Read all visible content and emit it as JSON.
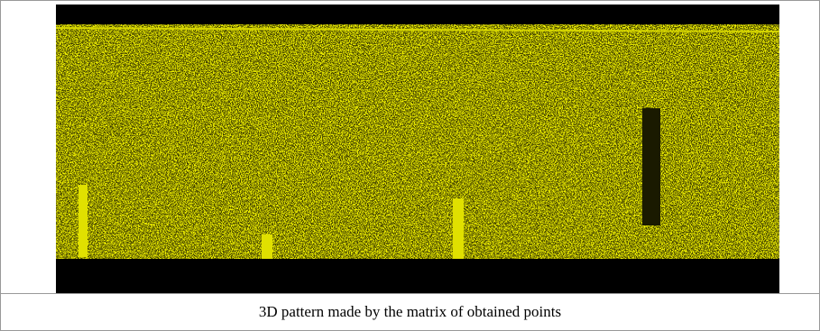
{
  "figure": {
    "caption": "3D pattern made by the matrix of obtained points"
  }
}
